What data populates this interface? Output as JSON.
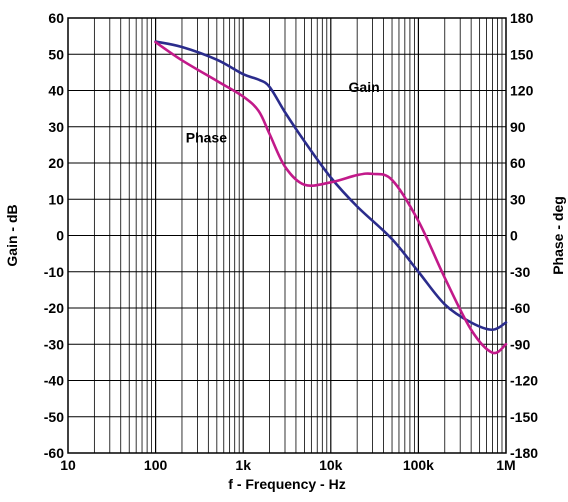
{
  "chart_data": {
    "type": "line",
    "xlabel": "f - Frequency - Hz",
    "ylabel_left": "Gain - dB",
    "ylabel_right": "Phase - deg",
    "x_scale": "log",
    "xlim": [
      10,
      1000000
    ],
    "ylim_left": [
      -60,
      60
    ],
    "ylim_right": [
      -180,
      180
    ],
    "grid": true,
    "x_ticks": [
      {
        "value": 10,
        "label": "10"
      },
      {
        "value": 100,
        "label": "100"
      },
      {
        "value": 1000,
        "label": "1k"
      },
      {
        "value": 10000,
        "label": "10k"
      },
      {
        "value": 100000,
        "label": "100k"
      },
      {
        "value": 1000000,
        "label": "1M"
      }
    ],
    "y_ticks_left": [
      60,
      50,
      40,
      30,
      20,
      10,
      0,
      -10,
      -20,
      -30,
      -40,
      -50,
      -60
    ],
    "y_ticks_right": [
      180,
      150,
      120,
      90,
      60,
      30,
      0,
      -30,
      -60,
      -90,
      -120,
      -150,
      -180
    ],
    "series": [
      {
        "name": "Gain",
        "axis": "left",
        "color": "#2b2c8c",
        "x": [
          100,
          200,
          500,
          1000,
          1500,
          2000,
          3000,
          5000,
          10000,
          20000,
          50000,
          100000,
          200000,
          400000,
          700000,
          1000000
        ],
        "y": [
          53.5,
          52,
          48.5,
          44.5,
          43,
          41,
          34,
          26,
          16,
          8,
          -1,
          -10,
          -19,
          -24,
          -26,
          -24
        ]
      },
      {
        "name": "Phase",
        "axis": "right",
        "color": "#c21a8a",
        "x": [
          100,
          200,
          500,
          1000,
          1500,
          2000,
          3000,
          5000,
          10000,
          20000,
          30000,
          50000,
          100000,
          200000,
          400000,
          700000,
          1000000
        ],
        "y": [
          160,
          145,
          128,
          115,
          103,
          84,
          57,
          42,
          44,
          50,
          51,
          46,
          12,
          -35,
          -78,
          -97,
          -90
        ]
      }
    ],
    "annotations": [
      {
        "text": "Gain",
        "series": "Gain",
        "x": 24000,
        "y_left": 41
      },
      {
        "text": "Phase",
        "series": "Phase",
        "x": 380,
        "y_left": 27
      }
    ]
  }
}
